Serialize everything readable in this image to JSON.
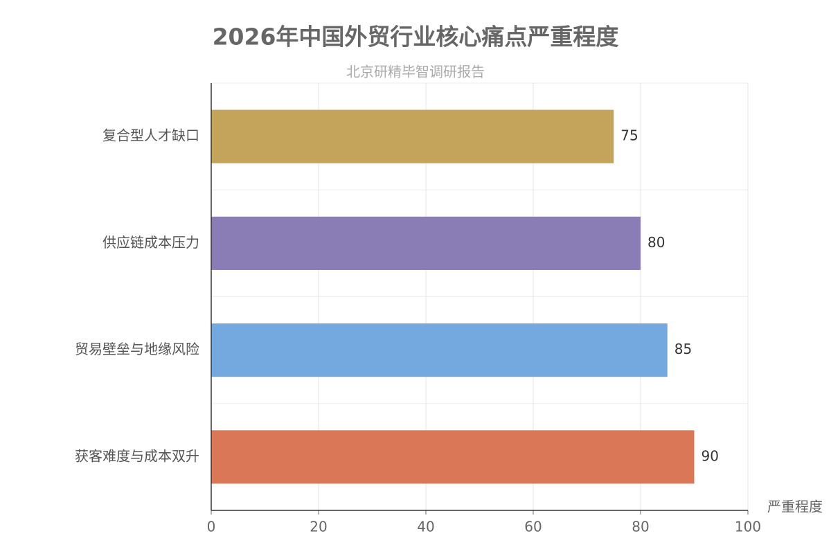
{
  "chart_data": {
    "type": "bar",
    "orientation": "horizontal",
    "title": "2026年中国外贸行业核心痛点严重程度",
    "subtitle": "北京研精毕智调研报告",
    "x_label": "严重程度",
    "categories": [
      "复合型人才缺口",
      "供应链成本压力",
      "贸易壁垒与地缘风险",
      "获客难度与成本双升"
    ],
    "values": [
      75,
      80,
      85,
      90
    ],
    "colors": [
      "#c4a35a",
      "#8a7db5",
      "#74a9e0",
      "#d97757"
    ],
    "xlim": [
      0,
      100
    ],
    "xticks": [
      0,
      20,
      40,
      60,
      80,
      100
    ],
    "grid": true
  }
}
